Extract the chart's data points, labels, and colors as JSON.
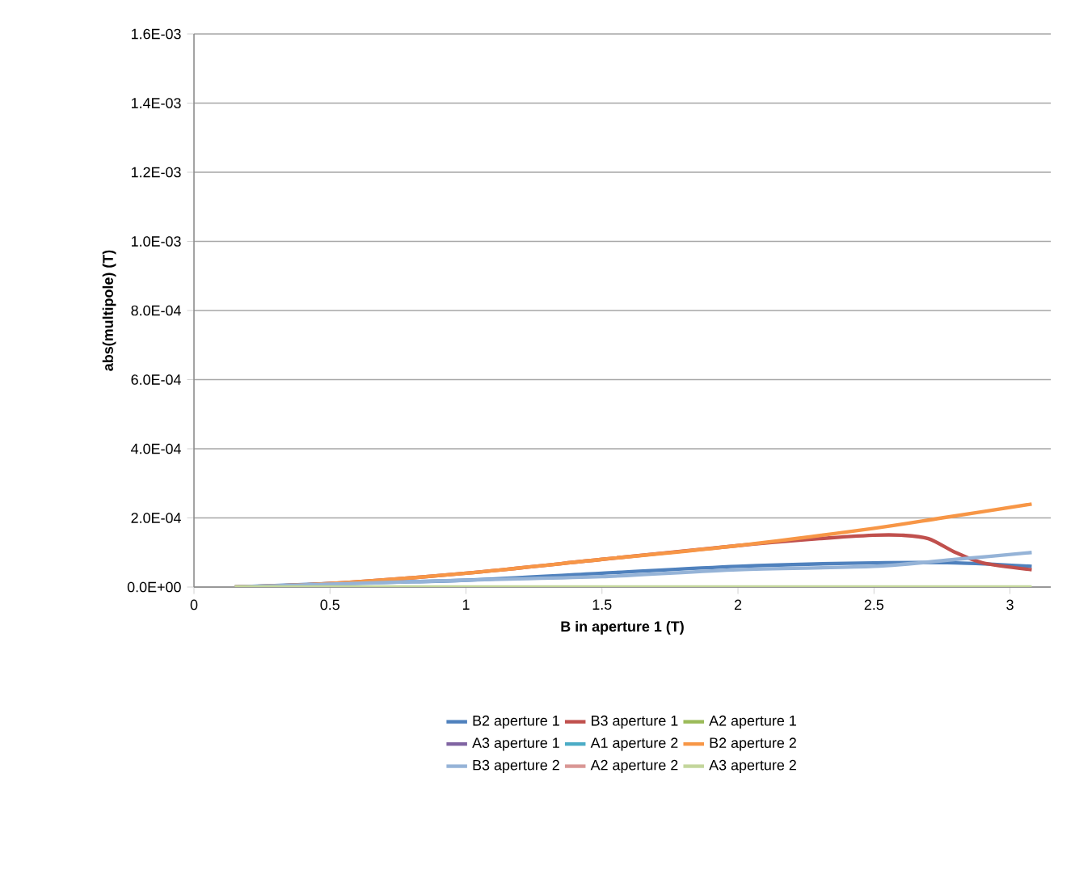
{
  "chart_data": {
    "type": "line",
    "xlabel": "B in aperture 1 (T)",
    "ylabel": "abs(multipole) (T)",
    "xlim": [
      0,
      3.15
    ],
    "xticks": [
      0,
      0.5,
      1,
      1.5,
      2,
      2.5,
      3
    ],
    "ylim": [
      0,
      0.0016
    ],
    "yticks": [
      {
        "value": 0,
        "label": "0.0E+00"
      },
      {
        "value": 0.0002,
        "label": "2.0E-04"
      },
      {
        "value": 0.0004,
        "label": "4.0E-04"
      },
      {
        "value": 0.0006,
        "label": "6.0E-04"
      },
      {
        "value": 0.0008,
        "label": "8.0E-04"
      },
      {
        "value": 0.001,
        "label": "1.0E-03"
      },
      {
        "value": 0.0012,
        "label": "1.2E-03"
      },
      {
        "value": 0.0014,
        "label": "1.4E-03"
      },
      {
        "value": 0.0016,
        "label": "1.6E-03"
      }
    ],
    "grid": "y",
    "legend": "bottom",
    "series": [
      {
        "name": "B2 aperture 1",
        "color": "#4f81bd",
        "x": [
          0.15,
          0.5,
          1,
          1.5,
          2,
          2.5,
          2.8,
          3.08
        ],
        "values": [
          0,
          1e-05,
          2e-05,
          4e-05,
          6e-05,
          7e-05,
          7e-05,
          6e-05
        ]
      },
      {
        "name": "B3 aperture 1",
        "color": "#c0504d",
        "x": [
          0.15,
          0.5,
          1,
          1.5,
          2,
          2.3,
          2.5,
          2.6,
          2.7,
          2.8,
          2.9,
          3.08
        ],
        "values": [
          0,
          1e-05,
          4e-05,
          8e-05,
          0.00012,
          0.00014,
          0.00015,
          0.00015,
          0.00014,
          0.0001,
          7e-05,
          5e-05
        ]
      },
      {
        "name": "A2 aperture 1",
        "color": "#9bbb59"
      },
      {
        "name": "A3 aperture 1",
        "color": "#8064a2"
      },
      {
        "name": "A1 aperture 2",
        "color": "#4bacc6"
      },
      {
        "name": "B2 aperture 2",
        "color": "#f79646",
        "x": [
          0.15,
          0.5,
          1,
          1.5,
          2,
          2.5,
          2.75,
          3.08
        ],
        "values": [
          0,
          1e-05,
          4e-05,
          8e-05,
          0.00012,
          0.00017,
          0.0002,
          0.00024
        ]
      },
      {
        "name": "B3 aperture 2",
        "color": "#95b3d7",
        "x": [
          0.15,
          1,
          1.5,
          2,
          2.5,
          2.8,
          3.08
        ],
        "values": [
          0,
          2e-05,
          3e-05,
          5e-05,
          6e-05,
          8e-05,
          0.0001
        ]
      },
      {
        "name": "A2 aperture 2",
        "color": "#d99694"
      },
      {
        "name": "A3 aperture 2",
        "color": "#c3d69b",
        "x": [
          0.15,
          3.08
        ],
        "values": [
          0,
          0
        ]
      }
    ]
  }
}
